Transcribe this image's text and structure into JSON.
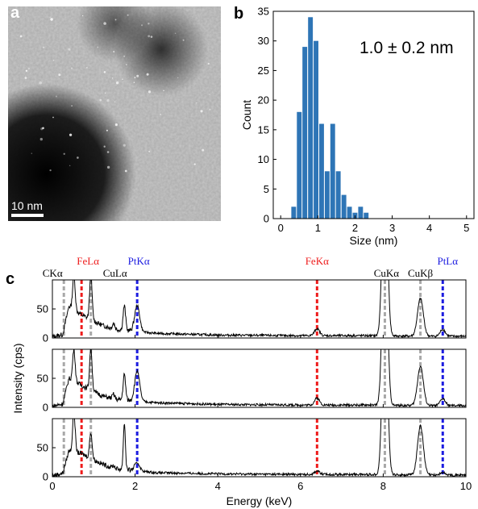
{
  "panels": {
    "a": {
      "letter": "a",
      "scale_bar_label": "10 nm"
    },
    "b": {
      "letter": "b",
      "annotation": "1.0 ± 0.2 nm"
    },
    "c": {
      "letter": "c"
    }
  },
  "colors": {
    "bar": "#2e75b6",
    "fe": "#ee1c1c",
    "pt": "#1c1ce0",
    "cu": "#a8a8a8",
    "spectrum": "#000000"
  },
  "chart_data": [
    {
      "panel": "b",
      "type": "bar",
      "title": "",
      "xlabel": "Size (nm)",
      "ylabel": "Count",
      "xlim": [
        -0.2,
        5.2
      ],
      "ylim": [
        0,
        35
      ],
      "xticks": [
        0,
        1,
        2,
        3,
        4,
        5
      ],
      "yticks": [
        0,
        5,
        10,
        15,
        20,
        25,
        30,
        35
      ],
      "bin_width": 0.15,
      "bin_centers": [
        0.35,
        0.5,
        0.65,
        0.8,
        0.95,
        1.1,
        1.25,
        1.4,
        1.55,
        1.7,
        1.85,
        2.0,
        2.15,
        2.3
      ],
      "values": [
        2,
        18,
        29,
        34,
        30,
        16,
        8,
        16,
        8,
        4,
        2,
        1,
        2,
        1
      ],
      "annotation": "1.0 ± 0.2 nm"
    },
    {
      "panel": "c",
      "type": "line",
      "title": "",
      "xlabel": "Energy (keV)",
      "ylabel": "Intensity (cps)",
      "xlim": [
        0,
        10
      ],
      "ylim": [
        0,
        100
      ],
      "xticks": [
        0,
        2,
        4,
        6,
        8,
        10
      ],
      "yticks": [
        0,
        50
      ],
      "subplots": 3,
      "peak_markers": [
        {
          "label": "CKα",
          "energy": 0.277,
          "color": "#a8a8a8",
          "label_color": "#000000"
        },
        {
          "label": "FeLα",
          "energy": 0.705,
          "color": "#ee1c1c",
          "label_color": "#ee1c1c"
        },
        {
          "label": "CuLα",
          "energy": 0.93,
          "color": "#a8a8a8",
          "label_color": "#000000"
        },
        {
          "label": "PtKα",
          "energy": 2.05,
          "color": "#1c1ce0",
          "label_color": "#1c1ce0"
        },
        {
          "label": "FeKα",
          "energy": 6.4,
          "color": "#ee1c1c",
          "label_color": "#ee1c1c"
        },
        {
          "label": "CuKα",
          "energy": 8.04,
          "color": "#a8a8a8",
          "label_color": "#000000"
        },
        {
          "label": "CuKβ",
          "energy": 8.9,
          "color": "#a8a8a8",
          "label_color": "#000000"
        },
        {
          "label": "PtLα",
          "energy": 9.44,
          "color": "#1c1ce0",
          "label_color": "#1c1ce0"
        }
      ],
      "series": [
        {
          "baseline": [
            [
              0,
              2
            ],
            [
              0.25,
              6
            ],
            [
              0.4,
              55
            ],
            [
              0.7,
              40
            ],
            [
              1.2,
              22
            ],
            [
              1.5,
              15
            ],
            [
              2.5,
              8
            ],
            [
              4,
              5
            ],
            [
              6,
              4
            ],
            [
              7.5,
              4
            ],
            [
              9,
              3
            ],
            [
              10,
              3
            ]
          ],
          "peaks": [
            {
              "center": 0.52,
              "height": 60,
              "width": 0.03
            },
            {
              "center": 0.93,
              "height": 75,
              "width": 0.03
            },
            {
              "center": 1.48,
              "height": 10,
              "width": 0.03
            },
            {
              "center": 1.74,
              "height": 42,
              "width": 0.03
            },
            {
              "center": 2.05,
              "height": 45,
              "width": 0.06
            },
            {
              "center": 6.4,
              "height": 12,
              "width": 0.06
            },
            {
              "center": 8.04,
              "height": 320,
              "width": 0.06
            },
            {
              "center": 8.9,
              "height": 65,
              "width": 0.07
            },
            {
              "center": 9.44,
              "height": 12,
              "width": 0.06
            }
          ]
        },
        {
          "baseline": [
            [
              0,
              2
            ],
            [
              0.25,
              6
            ],
            [
              0.4,
              50
            ],
            [
              0.7,
              38
            ],
            [
              1.2,
              20
            ],
            [
              1.5,
              14
            ],
            [
              2.5,
              8
            ],
            [
              4,
              5
            ],
            [
              6,
              4
            ],
            [
              7.5,
              4
            ],
            [
              9,
              3
            ],
            [
              10,
              3
            ]
          ],
          "peaks": [
            {
              "center": 0.52,
              "height": 55,
              "width": 0.03
            },
            {
              "center": 0.93,
              "height": 72,
              "width": 0.03
            },
            {
              "center": 1.48,
              "height": 8,
              "width": 0.03
            },
            {
              "center": 1.74,
              "height": 44,
              "width": 0.03
            },
            {
              "center": 2.05,
              "height": 52,
              "width": 0.06
            },
            {
              "center": 6.4,
              "height": 12,
              "width": 0.06
            },
            {
              "center": 8.04,
              "height": 320,
              "width": 0.06
            },
            {
              "center": 8.9,
              "height": 68,
              "width": 0.07
            },
            {
              "center": 9.44,
              "height": 12,
              "width": 0.06
            }
          ]
        },
        {
          "baseline": [
            [
              0,
              2
            ],
            [
              0.25,
              6
            ],
            [
              0.4,
              45
            ],
            [
              0.7,
              40
            ],
            [
              1.2,
              22
            ],
            [
              1.5,
              14
            ],
            [
              2.5,
              7
            ],
            [
              4,
              5
            ],
            [
              6,
              4
            ],
            [
              7.5,
              4
            ],
            [
              9,
              3
            ],
            [
              10,
              3
            ]
          ],
          "peaks": [
            {
              "center": 0.52,
              "height": 68,
              "width": 0.03
            },
            {
              "center": 0.93,
              "height": 45,
              "width": 0.03
            },
            {
              "center": 1.48,
              "height": 5,
              "width": 0.03
            },
            {
              "center": 1.74,
              "height": 80,
              "width": 0.025
            },
            {
              "center": 2.05,
              "height": 14,
              "width": 0.06
            },
            {
              "center": 6.4,
              "height": 6,
              "width": 0.06
            },
            {
              "center": 8.04,
              "height": 320,
              "width": 0.06
            },
            {
              "center": 8.9,
              "height": 85,
              "width": 0.07
            },
            {
              "center": 9.44,
              "height": 4,
              "width": 0.06
            }
          ]
        }
      ]
    }
  ]
}
